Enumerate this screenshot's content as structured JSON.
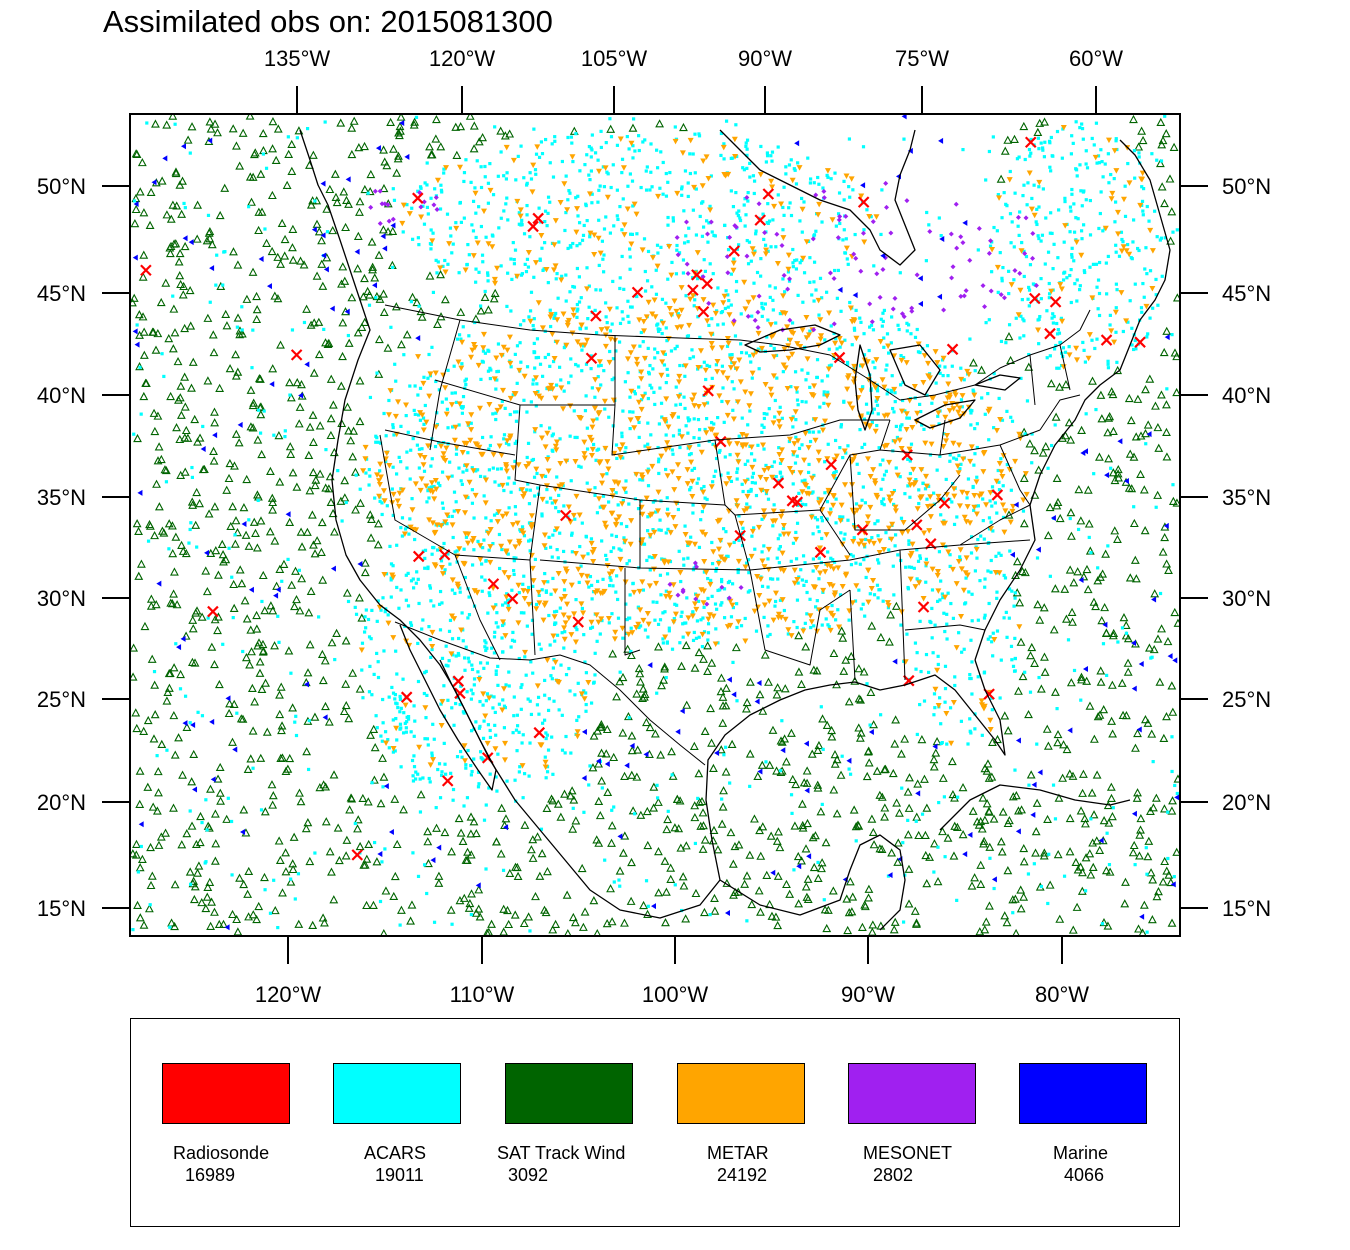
{
  "title": "Assimilated obs on: 2015081300",
  "axes": {
    "top": [
      "135°W",
      "120°W",
      "105°W",
      "90°W",
      "75°W",
      "60°W"
    ],
    "bottom": [
      "120°W",
      "110°W",
      "100°W",
      "90°W",
      "80°W"
    ],
    "left": [
      "50°N",
      "45°N",
      "40°N",
      "35°N",
      "30°N",
      "25°N",
      "20°N",
      "15°N"
    ],
    "right": [
      "50°N",
      "45°N",
      "40°N",
      "35°N",
      "30°N",
      "25°N",
      "20°N",
      "15°N"
    ]
  },
  "legend": [
    {
      "label": "Radiosonde",
      "count": "16989",
      "color": "#ff0000"
    },
    {
      "label": "ACARS",
      "count": "19011",
      "color": "#00ffff"
    },
    {
      "label": "SAT Track Wind",
      "count": "3092",
      "color": "#006400"
    },
    {
      "label": "METAR",
      "count": "24192",
      "color": "#ffa500"
    },
    {
      "label": "MESONET",
      "count": "2802",
      "color": "#a020f0"
    },
    {
      "label": "Marine",
      "count": "4066",
      "color": "#0000ff"
    }
  ],
  "map": {
    "projection": "Lambert conformal (CONUS)",
    "extent": "North America, 15°N–52°N",
    "markers": {
      "Radiosonde": "red-x-marker",
      "ACARS": "cyan-dot-marker",
      "SAT Track Wind": "green-triangle-marker",
      "METAR": "orange-down-triangle-marker",
      "MESONET": "purple-diamond-marker",
      "Marine": "blue-left-triangle-marker"
    }
  }
}
